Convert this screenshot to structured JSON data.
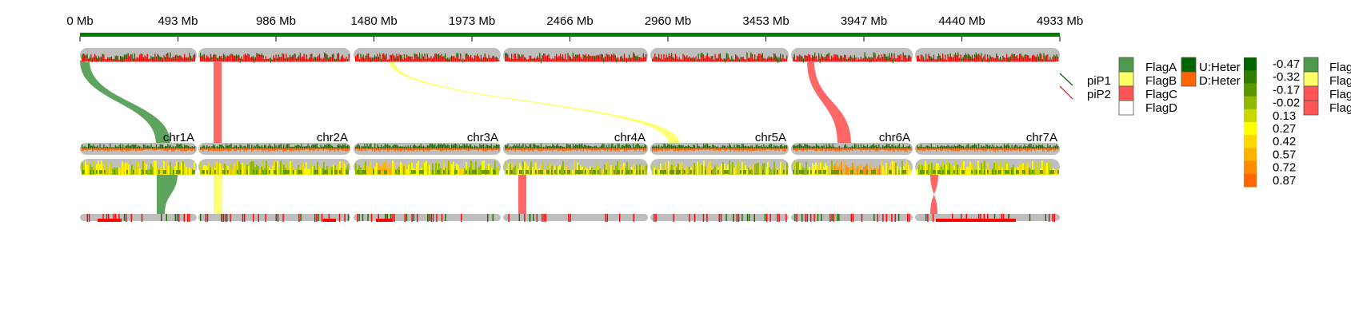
{
  "axis": {
    "unit": "Mb",
    "min": 0,
    "max": 4933,
    "tick_labels": [
      "0 Mb",
      "493 Mb",
      "986 Mb",
      "1480 Mb",
      "1973 Mb",
      "2466 Mb",
      "2960 Mb",
      "3453 Mb",
      "3947 Mb",
      "4440 Mb",
      "4933 Mb"
    ],
    "bar_color": "#008000"
  },
  "chromosomes": {
    "labels": [
      "chr1A",
      "chr2A",
      "chr3A",
      "chr4A",
      "chr5A",
      "chr6A",
      "chr7A"
    ],
    "track_color": "#bebebe"
  },
  "links": [
    {
      "flag": "FlagA",
      "from_track": "top",
      "to_track": "middle",
      "from_chr": 1,
      "to_chr": 1
    },
    {
      "flag": "FlagC",
      "from_track": "top",
      "to_track": "middle",
      "from_chr": 2,
      "to_chr": 2
    },
    {
      "flag": "FlagB",
      "from_track": "top",
      "to_track": "middle",
      "from_chr": 3,
      "to_chr": 5
    },
    {
      "flag": "FlagC",
      "from_track": "top",
      "to_track": "middle",
      "from_chr": 6,
      "to_chr": 6
    },
    {
      "flag": "FlagA",
      "from_track": "middle",
      "to_track": "bottom",
      "from_chr": 1,
      "to_chr": 1
    },
    {
      "flag": "FlagB",
      "from_track": "middle",
      "to_track": "bottom",
      "from_chr": 2,
      "to_chr": 2
    },
    {
      "flag": "FlagC",
      "from_track": "middle",
      "to_track": "bottom",
      "from_chr": 4,
      "to_chr": 4
    },
    {
      "flag": "FlagC",
      "from_track": "middle",
      "to_track": "bottom",
      "from_chr": 7,
      "to_chr": 7
    }
  ],
  "legend_flags": {
    "items": [
      {
        "label": "FlagA",
        "color": "#4d9a4d"
      },
      {
        "label": "FlagB",
        "color": "#ffff66"
      },
      {
        "label": "FlagC",
        "color": "#ff5555"
      },
      {
        "label": "FlagD",
        "color": "#ffffff"
      }
    ]
  },
  "legend_lines": {
    "items": [
      {
        "label": "piP1",
        "color": "#006400"
      },
      {
        "label": "piP2",
        "color": "#ff0000"
      }
    ]
  },
  "legend_het": {
    "items": [
      {
        "label": "U:Heter",
        "color": "#006400"
      },
      {
        "label": "D:Heter",
        "color": "#ff6600"
      }
    ]
  },
  "legend_scale": {
    "values": [
      "-0.47",
      "-0.32",
      "-0.17",
      "-0.02",
      "0.13",
      "0.27",
      "0.42",
      "0.57",
      "0.72",
      "0.87"
    ],
    "colors": [
      "#006400",
      "#2e7d00",
      "#5a9600",
      "#8fb800",
      "#c8d800",
      "#ffff00",
      "#ffd700",
      "#ffb300",
      "#ff8c00",
      "#ff6600"
    ]
  },
  "legend_flags_2": {
    "items": [
      {
        "label": "Flag",
        "color": "#4d9a4d"
      },
      {
        "label": "Flag",
        "color": "#ffff66"
      },
      {
        "label": "Flag",
        "color": "#ff5555"
      },
      {
        "label": "Flag",
        "color": "#ff5555"
      }
    ]
  },
  "colors": {
    "green": "#1a6b00",
    "red": "#ff0000",
    "orange": "#ff6600",
    "heat_low": "#8fb800",
    "heat_high": "#ff8c00"
  }
}
